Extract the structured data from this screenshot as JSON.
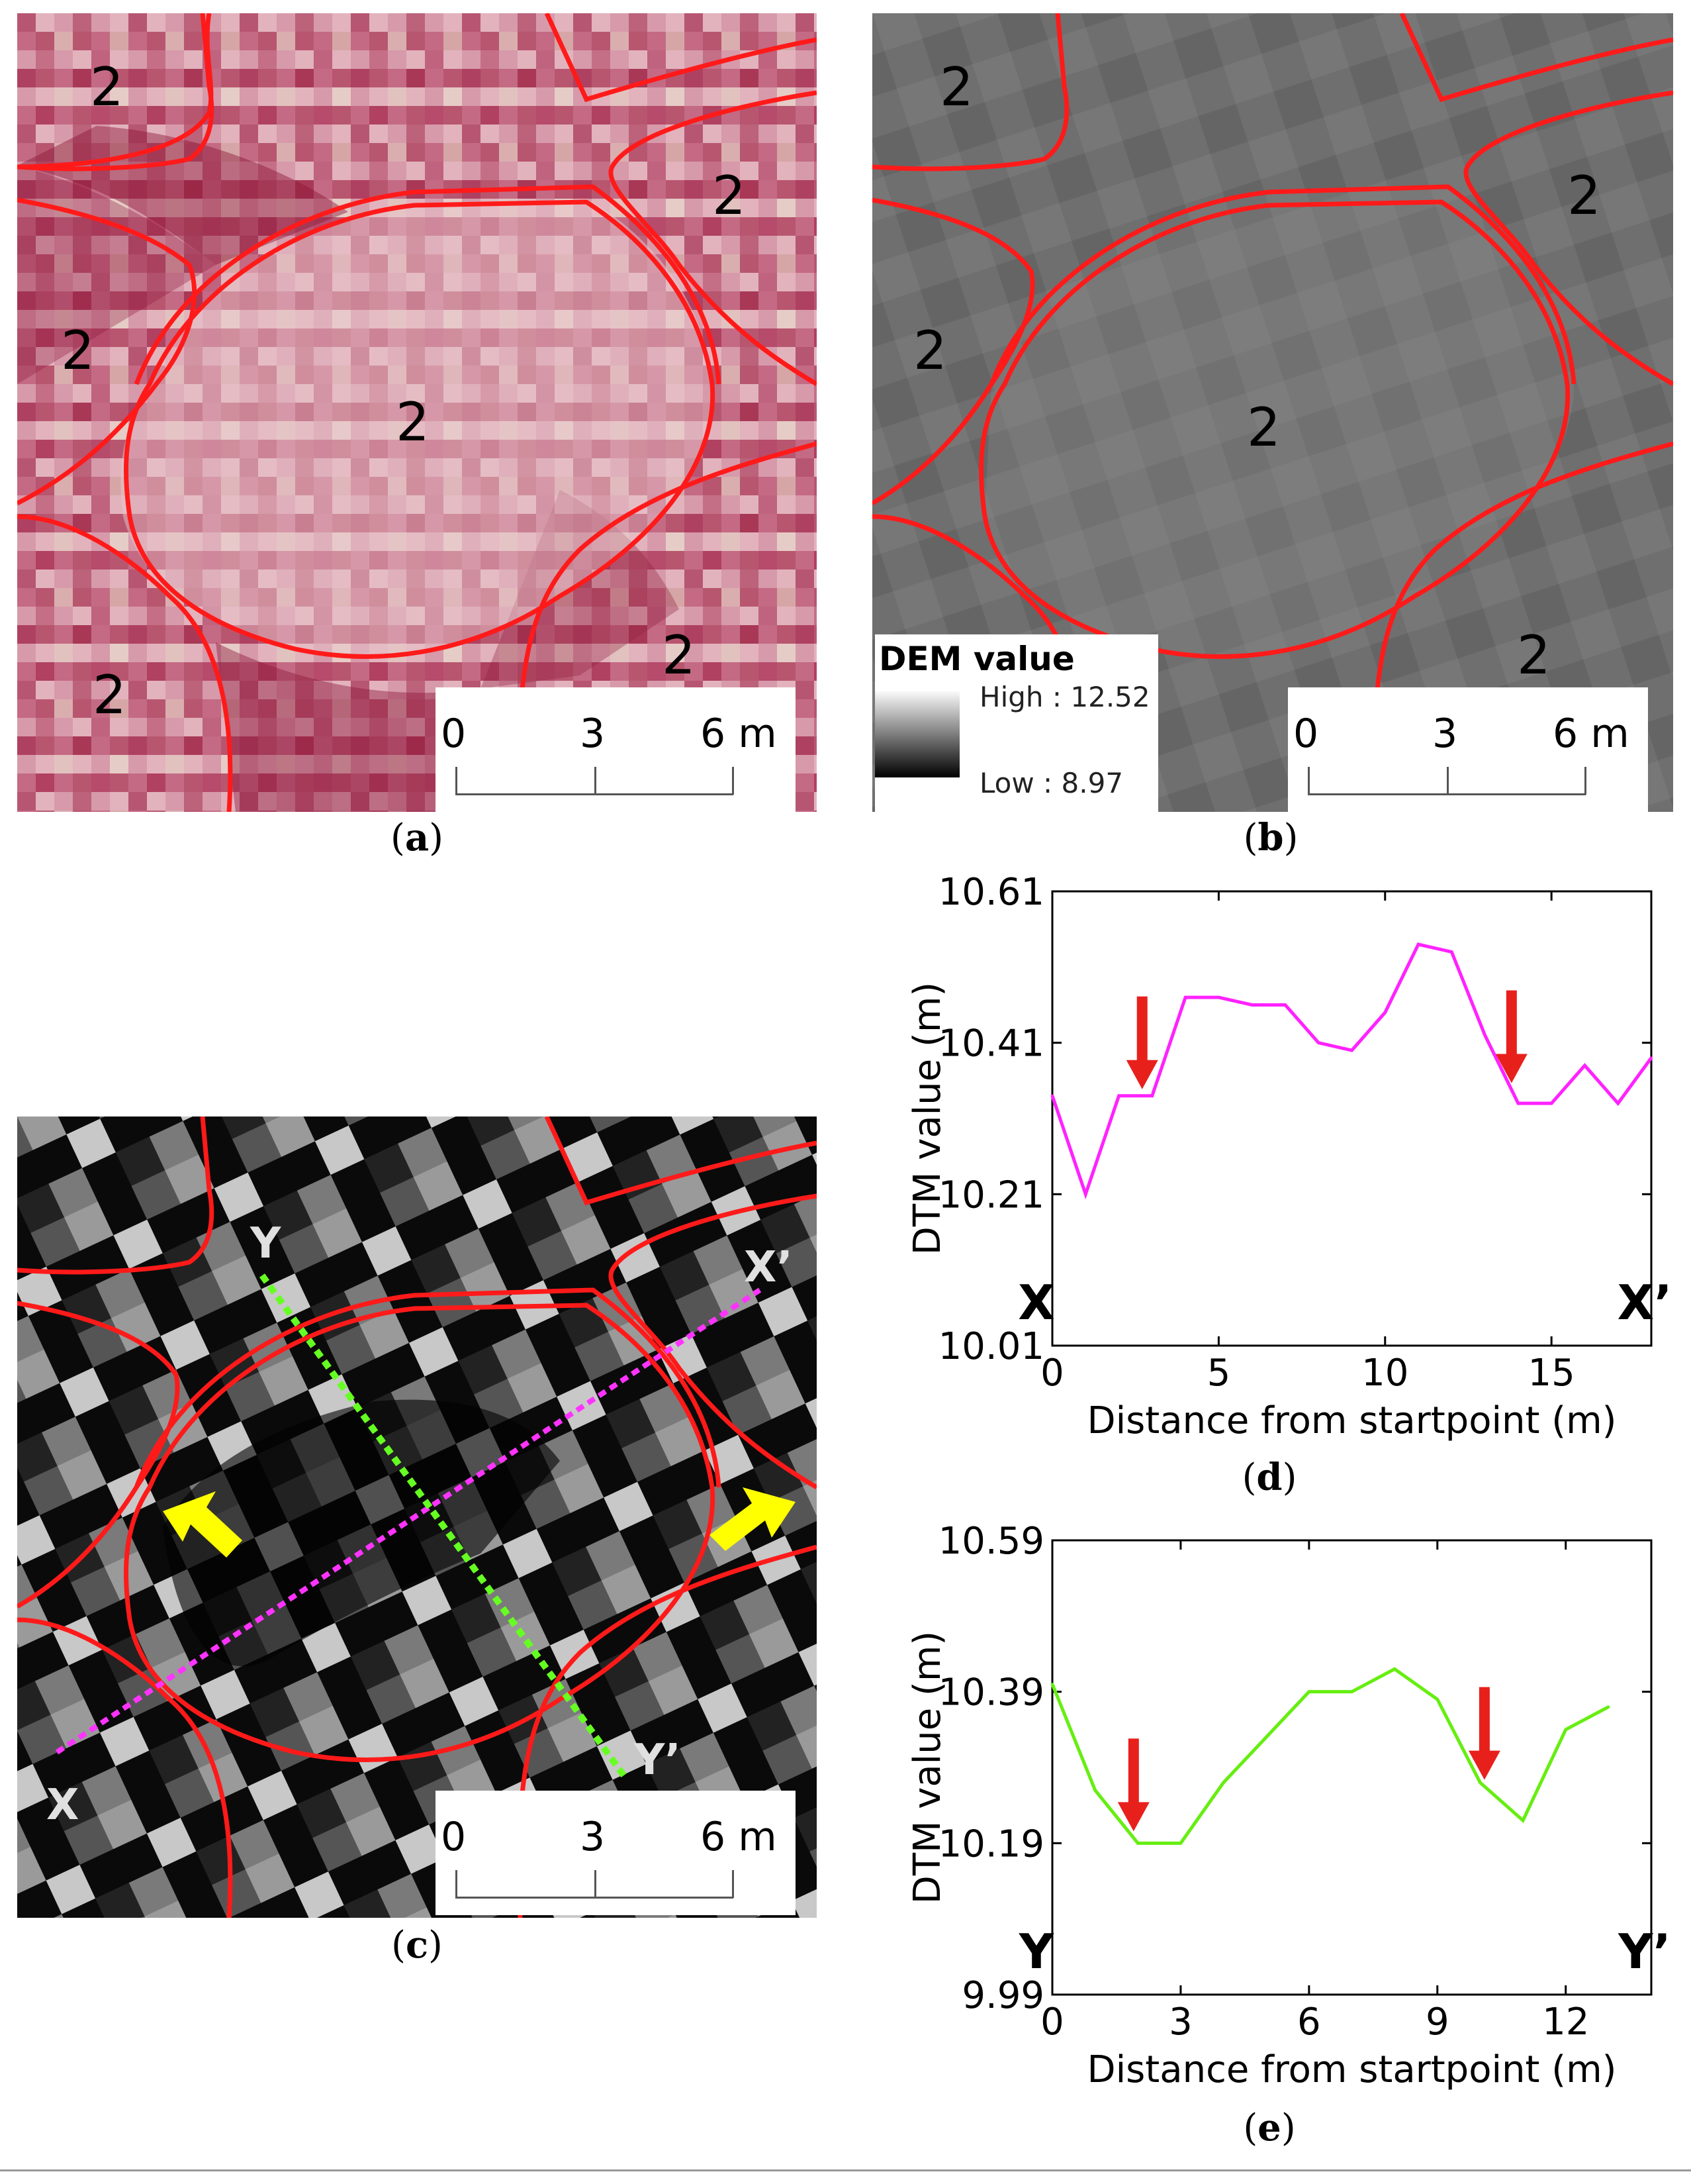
{
  "figure": {
    "panel_a": {
      "caption_letter": "a",
      "region_labels": [
        "2",
        "2",
        "2",
        "2",
        "2",
        "2"
      ],
      "scalebar": {
        "ticks": [
          "0",
          "3",
          "6 m"
        ]
      }
    },
    "panel_b": {
      "caption_letter": "b",
      "region_labels": [
        "2",
        "2",
        "2",
        "2",
        "2"
      ],
      "legend": {
        "title": "DEM value",
        "high": "High : 12.52",
        "low": "Low : 8.97"
      },
      "scalebar": {
        "ticks": [
          "0",
          "3",
          "6 m"
        ]
      }
    },
    "panel_c": {
      "caption_letter": "c",
      "profile_labels": {
        "x": "X",
        "x_prime": "X’",
        "y": "Y",
        "y_prime": "Y’"
      },
      "scalebar": {
        "ticks": [
          "0",
          "3",
          "6 m"
        ]
      }
    },
    "panel_d": {
      "caption_letter": "d"
    },
    "panel_e": {
      "caption_letter": "e"
    }
  },
  "chart_data": [
    {
      "id": "d",
      "type": "line",
      "xlabel": "Distance from startpoint (m)",
      "ylabel": "DTM value (m)",
      "xlim": [
        0,
        18
      ],
      "ylim": [
        10.01,
        10.61
      ],
      "xticks": [
        0,
        5,
        10,
        15
      ],
      "yticks": [
        "10.01",
        "10.21",
        "10.41",
        "10.61"
      ],
      "start_label": "X",
      "end_label": "X’",
      "series": [
        {
          "name": "X–X’ profile",
          "color": "#ff22ff",
          "x": [
            0,
            1,
            2,
            3,
            4,
            5,
            6,
            7,
            8,
            9,
            10,
            11,
            12,
            13,
            14,
            15,
            16,
            17,
            18
          ],
          "y": [
            10.34,
            10.21,
            10.34,
            10.34,
            10.47,
            10.47,
            10.46,
            10.46,
            10.41,
            10.4,
            10.45,
            10.54,
            10.53,
            10.42,
            10.33,
            10.33,
            10.38,
            10.33,
            10.39
          ]
        }
      ],
      "arrows_at_x": [
        2.7,
        13.8
      ],
      "arrow_color": "#e8201c"
    },
    {
      "id": "e",
      "type": "line",
      "xlabel": "Distance from startpoint (m)",
      "ylabel": "DTM value (m)",
      "xlim": [
        0,
        14
      ],
      "ylim": [
        9.99,
        10.59
      ],
      "xticks": [
        0,
        3,
        6,
        9,
        12
      ],
      "yticks": [
        "9.99",
        "10.19",
        "10.39",
        "10.59"
      ],
      "start_label": "Y",
      "end_label": "Y’",
      "series": [
        {
          "name": "Y–Y’ profile",
          "color": "#66ee11",
          "x": [
            0,
            1,
            2,
            3,
            4,
            5,
            6,
            7,
            8,
            9,
            10,
            11,
            12,
            13
          ],
          "y": [
            10.4,
            10.26,
            10.19,
            10.19,
            10.27,
            10.33,
            10.39,
            10.39,
            10.42,
            10.38,
            10.27,
            10.22,
            10.34,
            10.37
          ]
        }
      ],
      "arrows_at_x": [
        1.9,
        10.1
      ],
      "arrow_color": "#e8201c"
    }
  ]
}
